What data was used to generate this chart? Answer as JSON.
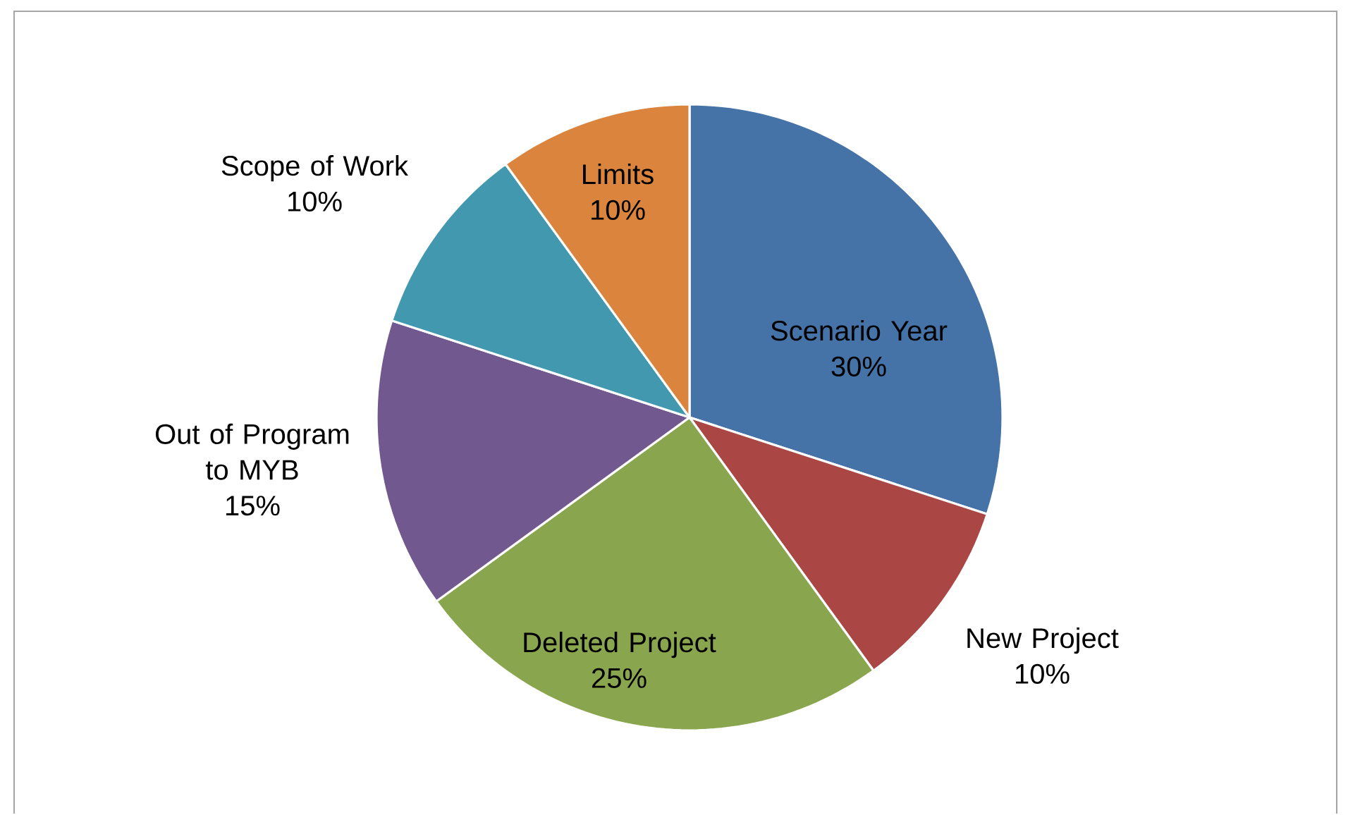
{
  "chart_data": {
    "type": "pie",
    "categories": [
      "Scenario Year",
      "New Project",
      "Deleted Project",
      "Out of Program to MYB",
      "Scope of Work",
      "Limits"
    ],
    "values": [
      30,
      10,
      25,
      15,
      10,
      10
    ],
    "colors": [
      "#4572a7",
      "#aa4643",
      "#89a54e",
      "#71588f",
      "#4198af",
      "#db843d"
    ],
    "value_labels": [
      "30%",
      "10%",
      "25%",
      "15%",
      "10%",
      "10%"
    ]
  }
}
